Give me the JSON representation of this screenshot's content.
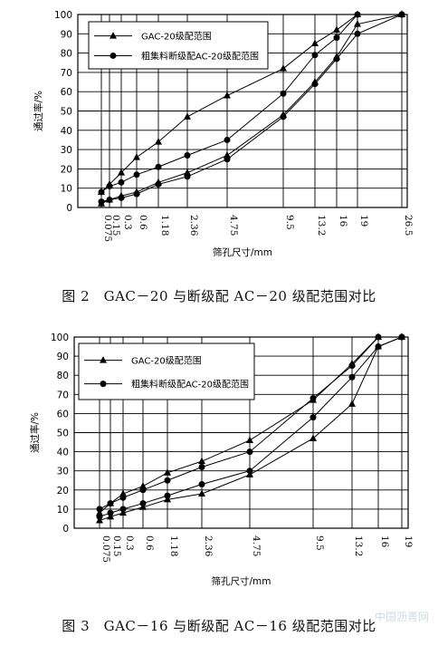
{
  "chart_data": [
    {
      "type": "line",
      "ylabel": "通过率/%",
      "xlabel": "筛孔尺寸/mm",
      "ylim": [
        0,
        100
      ],
      "yticks": [
        0,
        10,
        20,
        30,
        40,
        50,
        60,
        70,
        80,
        90,
        100
      ],
      "categories": [
        "0.075",
        "0.15",
        "0.3",
        "0.6",
        "1.18",
        "2.36",
        "4.75",
        "9.5",
        "13.2",
        "16",
        "19",
        "26.5"
      ],
      "legend_position": "top-left",
      "grid": true,
      "caption": "图 2　GAC－20 与断级配 AC－20 级配范围对比",
      "series": [
        {
          "name": "GAC-20级配范围",
          "marker": "triangle",
          "role": "upper",
          "values": [
            8,
            12,
            18,
            26,
            34,
            47,
            58,
            72,
            85,
            92,
            100,
            100
          ]
        },
        {
          "name": "GAC-20级配范围",
          "marker": "triangle",
          "role": "lower",
          "values": [
            2,
            4,
            6,
            8,
            13,
            18,
            27,
            48,
            65,
            78,
            95,
            100
          ]
        },
        {
          "name": "粗集料断级配AC-20级配范围",
          "marker": "circle",
          "role": "upper",
          "values": [
            8,
            11,
            13,
            17,
            21,
            27,
            35,
            59,
            79,
            88,
            100,
            100
          ]
        },
        {
          "name": "粗集料断级配AC-20级配范围",
          "marker": "circle",
          "role": "lower",
          "values": [
            3,
            4,
            5,
            7,
            12,
            16,
            25,
            47,
            64,
            77,
            90,
            100
          ]
        }
      ]
    },
    {
      "type": "line",
      "ylabel": "通过率/%",
      "xlabel": "筛孔尺寸/mm",
      "ylim": [
        0,
        100
      ],
      "yticks": [
        0,
        10,
        20,
        30,
        40,
        50,
        60,
        70,
        80,
        90,
        100
      ],
      "categories": [
        "0.075",
        "0.15",
        "0.3",
        "0.6",
        "1.18",
        "2.36",
        "4.75",
        "9.5",
        "13.2",
        "16",
        "19"
      ],
      "legend_position": "top-left",
      "grid": true,
      "caption": "图 3　GAC－16 与断级配 AC－16 级配范围对比",
      "series": [
        {
          "name": "GAC-20级配范围",
          "marker": "triangle",
          "role": "upper",
          "values": [
            8,
            13,
            18,
            22,
            29,
            35,
            46,
            67,
            86,
            100,
            100
          ]
        },
        {
          "name": "GAC-20级配范围",
          "marker": "triangle",
          "role": "lower",
          "values": [
            4,
            6,
            8,
            11,
            15,
            18,
            28,
            47,
            65,
            95,
            100
          ]
        },
        {
          "name": "粗集料断级配AC-20级配范围",
          "marker": "circle",
          "role": "upper",
          "values": [
            10,
            13,
            16,
            20,
            25,
            32,
            40,
            68,
            85,
            100,
            100
          ]
        },
        {
          "name": "粗集料断级配AC-20级配范围",
          "marker": "circle",
          "role": "lower",
          "values": [
            6,
            8,
            10,
            13,
            17,
            23,
            30,
            58,
            79,
            95,
            100
          ]
        }
      ]
    }
  ],
  "watermark": "中国沥青网"
}
